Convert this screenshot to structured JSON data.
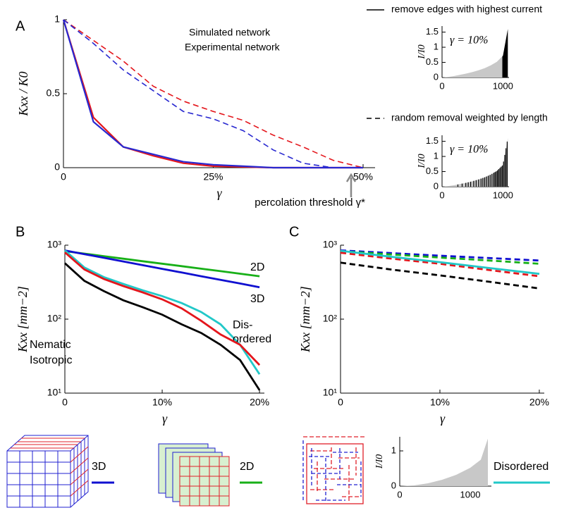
{
  "panel_labels": [
    "A",
    "B",
    "C"
  ],
  "chart_data": [
    {
      "type": "line",
      "ylabel": "Kxx / K0",
      "xlabel": "γ",
      "x": [
        0,
        5,
        10,
        15,
        20,
        25,
        30,
        35,
        40,
        45,
        50
      ],
      "series": [
        {
          "name": "Simulated network",
          "color": "#e4161c",
          "values": [
            1,
            0.34,
            0.14,
            0.08,
            0.03,
            0.01,
            0.005,
            0,
            0,
            0,
            0
          ],
          "random_values": [
            1,
            0.86,
            0.72,
            0.55,
            0.45,
            0.38,
            0.32,
            0.22,
            0.14,
            0.05,
            0
          ]
        },
        {
          "name": "Experimental network",
          "color": "#2828d0",
          "values": [
            1,
            0.31,
            0.14,
            0.09,
            0.04,
            0.02,
            0.01,
            0,
            0,
            0,
            0
          ],
          "random_values": [
            1,
            0.84,
            0.66,
            0.52,
            0.38,
            0.33,
            0.25,
            0.12,
            0.03,
            0,
            0
          ]
        }
      ],
      "xlim": [
        0,
        52
      ],
      "ylim": [
        0,
        1
      ],
      "xticks": [
        0,
        {
          "value": 25,
          "label": "25%"
        },
        {
          "value": 50,
          "label": "50%"
        }
      ],
      "yticks": [
        0,
        0.5,
        1
      ],
      "annotation": {
        "text": "percolation threshold γ*",
        "x": 48
      }
    },
    {
      "type": "area",
      "title": "remove edges with highest current",
      "line_style": "solid",
      "annotation": "γ = 10%",
      "ylabel": "I/I0",
      "x": [
        0,
        100,
        200,
        300,
        400,
        500,
        600,
        700,
        800,
        900,
        1000,
        1080
      ],
      "values": [
        0,
        0.02,
        0.05,
        0.09,
        0.13,
        0.18,
        0.24,
        0.31,
        0.4,
        0.52,
        0.72,
        1.6
      ],
      "highlight_from": 990,
      "xlim": [
        0,
        1100
      ],
      "ylim": [
        0,
        1.7
      ],
      "xticks": [
        0,
        1000
      ],
      "yticks": [
        0,
        0.5,
        1,
        1.5
      ]
    },
    {
      "type": "area",
      "title": "random removal weighted by length",
      "line_style": "dashed",
      "annotation": "γ = 10%",
      "ylabel": "I/I0",
      "x": [
        0,
        100,
        200,
        300,
        400,
        500,
        600,
        700,
        800,
        900,
        1000,
        1080
      ],
      "values": [
        0,
        0.02,
        0.05,
        0.09,
        0.13,
        0.18,
        0.24,
        0.31,
        0.4,
        0.52,
        0.72,
        1.6
      ],
      "removed_x": [
        260,
        330,
        390,
        430,
        470,
        520,
        560,
        600,
        640,
        670,
        700,
        730,
        760,
        790,
        820,
        850,
        870,
        890,
        910,
        930,
        950,
        970,
        990,
        1010,
        1030,
        1050,
        1070
      ],
      "xlim": [
        0,
        1100
      ],
      "ylim": [
        0,
        1.7
      ],
      "xticks": [
        0,
        1000
      ],
      "yticks": [
        0,
        0.5,
        1,
        1.5
      ]
    },
    {
      "type": "line",
      "log_y": true,
      "ylabel": "Kxx  [mm−2]",
      "xlabel": "γ",
      "x": [
        0,
        2,
        4,
        6,
        8,
        10,
        12,
        14,
        16,
        18,
        20
      ],
      "series": [
        {
          "name": "2D",
          "color": "#18b018",
          "values": [
            830,
            768,
            710,
            656,
            607,
            562,
            520,
            481,
            445,
            411,
            380
          ]
        },
        {
          "name": "3D",
          "color": "#1010d0",
          "values": [
            849,
            757,
            675,
            603,
            537,
            479,
            427,
            380,
            340,
            303,
            270
          ]
        },
        {
          "name_lines": [
            "Dis-",
            "ordered"
          ],
          "color": "#22c8c8",
          "values": [
            850,
            500,
            370,
            300,
            245,
            205,
            165,
            125,
            85,
            45,
            18
          ]
        },
        {
          "name": "Nematic",
          "color": "#e4161c",
          "values": [
            800,
            470,
            350,
            280,
            230,
            185,
            140,
            95,
            62,
            45,
            24
          ]
        },
        {
          "name": "Isotropic",
          "color": "#000000",
          "values": [
            570,
            330,
            240,
            180,
            145,
            115,
            85,
            65,
            45,
            28,
            11
          ]
        }
      ],
      "xlim": [
        0,
        20.5
      ],
      "ylim": [
        10,
        1000
      ],
      "xticks": [
        0,
        {
          "value": 10,
          "label": "10%"
        },
        {
          "value": 20,
          "label": "20%"
        }
      ],
      "yticks": [
        {
          "value": 10,
          "label": "10¹"
        },
        {
          "value": 100,
          "label": "10²"
        },
        {
          "value": 1000,
          "label": "10³"
        }
      ]
    },
    {
      "type": "line",
      "log_y": true,
      "ylabel": "Kxx  [mm−2]",
      "xlabel": "γ",
      "x": [
        0,
        5,
        10,
        15,
        20
      ],
      "series": [
        {
          "color": "#1010d0",
          "dashed": true,
          "values": [
            850,
            782,
            720,
            670,
            620
          ]
        },
        {
          "color": "#18b018",
          "dashed": true,
          "values": [
            830,
            750,
            680,
            620,
            560
          ]
        },
        {
          "color": "#e4161c",
          "dashed": true,
          "values": [
            790,
            660,
            560,
            460,
            380
          ]
        },
        {
          "color": "#22c8c8",
          "dashed": false,
          "values": [
            840,
            700,
            590,
            490,
            410
          ]
        },
        {
          "color": "#000000",
          "dashed": true,
          "values": [
            580,
            470,
            390,
            320,
            260
          ]
        }
      ],
      "xlim": [
        0,
        20.5
      ],
      "ylim": [
        10,
        1000
      ],
      "xticks": [
        0,
        {
          "value": 10,
          "label": "10%"
        },
        {
          "value": 20,
          "label": "20%"
        }
      ],
      "yticks": [
        {
          "value": 10,
          "label": "10¹"
        },
        {
          "value": 100,
          "label": "10²"
        },
        {
          "value": 1000,
          "label": "10³"
        }
      ]
    },
    {
      "type": "area",
      "ylabel": "I/I0",
      "x": [
        0,
        200,
        400,
        600,
        800,
        1000,
        1150,
        1250
      ],
      "values": [
        0,
        0.02,
        0.08,
        0.18,
        0.32,
        0.52,
        0.75,
        1.35
      ],
      "xlim": [
        0,
        1300
      ],
      "ylim": [
        0,
        1.4
      ],
      "xticks": [
        0,
        1000
      ],
      "yticks": [
        0,
        1
      ]
    }
  ],
  "schematics": [
    {
      "label": "3D",
      "color": "#1010d0"
    },
    {
      "label": "2D",
      "color": "#18b018"
    },
    {
      "label": "Disordered",
      "color": "#22c8c8"
    }
  ]
}
